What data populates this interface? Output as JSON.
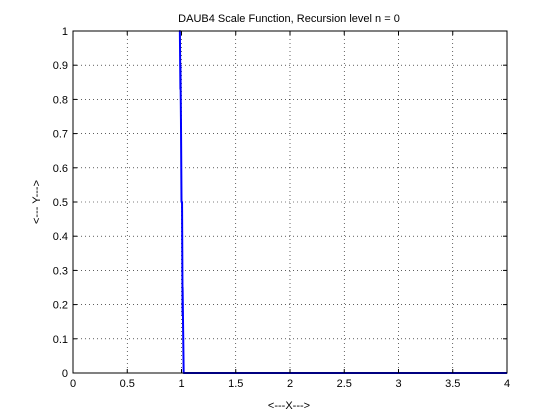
{
  "chart_data": {
    "type": "line",
    "title": "DAUB4 Scale Function, Recursion level n = 0",
    "xlabel": "<---X--->",
    "ylabel": "<--- Y--->",
    "xlim": [
      0,
      4
    ],
    "ylim": [
      0,
      1
    ],
    "x_ticks": [
      "0",
      "0.5",
      "1",
      "1.5",
      "2",
      "2.5",
      "3",
      "3.5",
      "4"
    ],
    "y_ticks": [
      "0",
      "0.1",
      "0.2",
      "0.3",
      "0.4",
      "0.5",
      "0.6",
      "0.7",
      "0.8",
      "0.9",
      "1"
    ],
    "grid": true,
    "series": [
      {
        "color": "#0000ff",
        "x": [
          0.98,
          0.985,
          0.99,
          0.99,
          0.995,
          1.0,
          1.005,
          1.01,
          1.01,
          1.02,
          4.0
        ],
        "y": [
          1.0,
          1.0,
          0.83,
          0.9,
          0.74,
          0.5,
          0.5,
          0.17,
          0.25,
          0.0,
          0.0
        ]
      }
    ]
  }
}
